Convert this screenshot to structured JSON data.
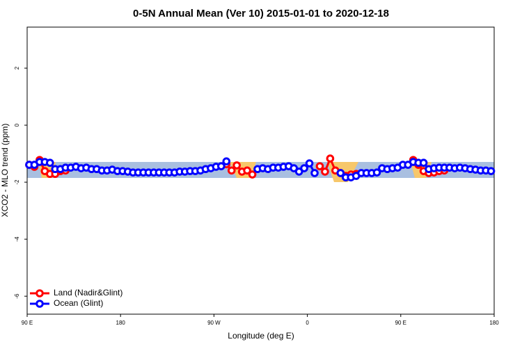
{
  "chart_data": {
    "type": "line",
    "title": "0-5N Annual Mean (Ver 10)   2015-01-01 to 2020-12-18",
    "xlabel": "Longitude (deg E)",
    "ylabel": "XCO2 - MLO trend (ppm)",
    "x": [
      92,
      97,
      102,
      107,
      112,
      117,
      122,
      127,
      132,
      137,
      142,
      147,
      152,
      157,
      162,
      167,
      172,
      177,
      182,
      187,
      192,
      197,
      202,
      207,
      212,
      217,
      222,
      227,
      232,
      237,
      242,
      247,
      252,
      257,
      262,
      267,
      272,
      277,
      282,
      287,
      292,
      297,
      302,
      307,
      312,
      317,
      322,
      327,
      332,
      337,
      342,
      347,
      352,
      357,
      362,
      367,
      372,
      377,
      382,
      387,
      392,
      397,
      402,
      407,
      412,
      417,
      422,
      427,
      432,
      437,
      442,
      447,
      452,
      457,
      462,
      467,
      472,
      477,
      482,
      487,
      492,
      497,
      502,
      507,
      512,
      517,
      522,
      527,
      532,
      537
    ],
    "series": [
      {
        "name": "Land (Nadir&Glint)",
        "color": "#ff0000",
        "values": [
          -1.39,
          -1.46,
          -1.22,
          -1.61,
          -1.71,
          -1.71,
          -1.61,
          -1.59,
          null,
          null,
          null,
          null,
          null,
          null,
          null,
          null,
          null,
          null,
          null,
          null,
          null,
          null,
          null,
          null,
          null,
          null,
          null,
          null,
          null,
          null,
          null,
          null,
          null,
          null,
          null,
          null,
          null,
          null,
          -1.37,
          -1.59,
          -1.41,
          -1.63,
          -1.59,
          -1.73,
          null,
          null,
          null,
          null,
          null,
          null,
          null,
          null,
          null,
          null,
          null,
          null,
          -1.44,
          -1.63,
          -1.17,
          -1.59,
          -1.68,
          -1.78,
          -1.73,
          -1.71,
          null,
          null,
          null,
          null,
          null,
          null,
          null,
          null,
          null,
          null,
          -1.22,
          -1.39,
          -1.61,
          -1.68,
          -1.66,
          -1.61,
          -1.59,
          null,
          null,
          null,
          null,
          null,
          null,
          null,
          null,
          null
        ]
      },
      {
        "name": "Ocean (Glint)",
        "color": "#0000ff",
        "values": [
          -1.39,
          -1.39,
          -1.29,
          -1.29,
          -1.32,
          -1.54,
          -1.54,
          -1.49,
          -1.49,
          -1.46,
          -1.51,
          -1.49,
          -1.54,
          -1.54,
          -1.59,
          -1.59,
          -1.56,
          -1.61,
          -1.61,
          -1.63,
          -1.66,
          -1.66,
          -1.66,
          -1.66,
          -1.66,
          -1.66,
          -1.66,
          -1.66,
          -1.66,
          -1.63,
          -1.63,
          -1.61,
          -1.61,
          -1.59,
          -1.54,
          -1.51,
          -1.46,
          -1.44,
          -1.27,
          null,
          null,
          null,
          null,
          null,
          -1.54,
          -1.51,
          -1.54,
          -1.49,
          -1.49,
          -1.46,
          -1.44,
          -1.51,
          -1.63,
          -1.51,
          -1.34,
          -1.68,
          null,
          null,
          null,
          null,
          -1.68,
          -1.83,
          -1.83,
          -1.78,
          -1.68,
          -1.68,
          -1.68,
          -1.66,
          -1.51,
          -1.54,
          -1.51,
          -1.49,
          -1.39,
          -1.39,
          -1.29,
          -1.32,
          -1.32,
          -1.54,
          -1.51,
          -1.49,
          -1.49,
          -1.49,
          -1.51,
          -1.49,
          -1.51,
          -1.54,
          -1.56,
          -1.59,
          -1.59,
          -1.61
        ]
      }
    ],
    "xlim": [
      90,
      540
    ],
    "xticks": [
      {
        "value": 90,
        "label": "90 E"
      },
      180,
      {
        "value": 270,
        "label": "90 W"
      },
      {
        "value": 360,
        "label": "0"
      },
      {
        "value": 450,
        "label": "90 E"
      },
      {
        "value": 540,
        "label": "180"
      }
    ],
    "ylim": [
      -6.63,
      3.44
    ],
    "yticks": [
      -6,
      -4,
      -2,
      0,
      2
    ],
    "legend": "lower left"
  }
}
